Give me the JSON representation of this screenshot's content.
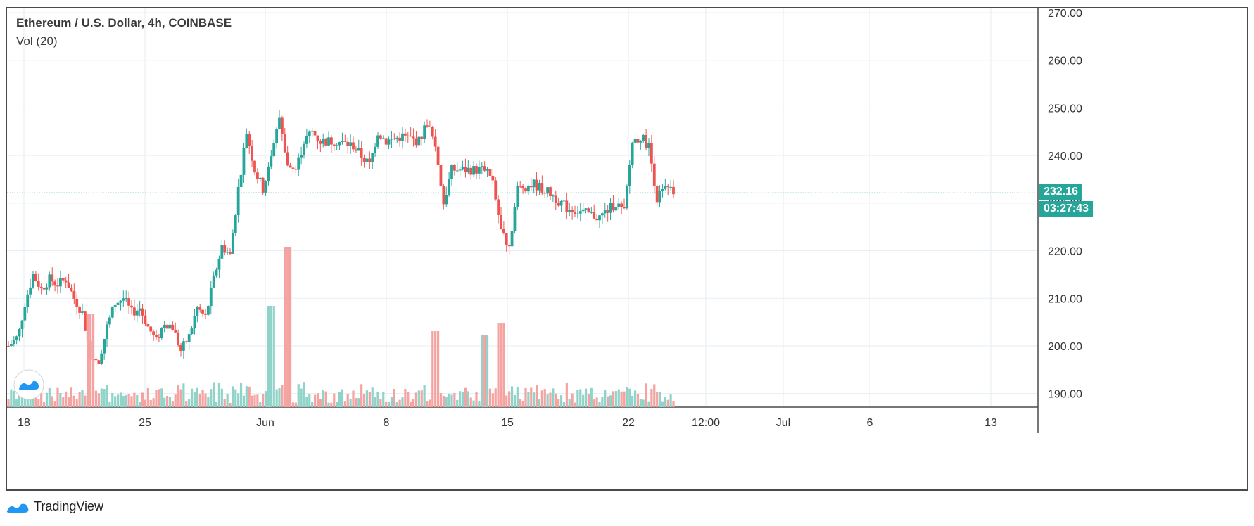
{
  "header": {
    "title": "Ethereum / U.S. Dollar, 4h, COINBASE",
    "volume_label": "Vol (20)"
  },
  "brand": {
    "name": "TradingView",
    "icon": "tradingview-logo-icon"
  },
  "colors": {
    "up": "#26a69a",
    "down": "#ef5350",
    "up_vol": "#8fd3c9",
    "down_vol": "#f4a3a1",
    "grid": "#e6eef3"
  },
  "last_price": {
    "value": "232.16",
    "countdown": "03:27:43"
  },
  "chart_data": {
    "type": "candlestick",
    "title": "Ethereum / U.S. Dollar, 4h, COINBASE",
    "interval": "4h",
    "exchange": "COINBASE",
    "y_axis": {
      "range": [
        187,
        270
      ],
      "ticks": [
        "270.00",
        "260.00",
        "250.00",
        "240.00",
        "230.00",
        "220.00",
        "210.00",
        "200.00",
        "190.00"
      ]
    },
    "x_axis": {
      "ticks": [
        "18",
        "25",
        "Jun",
        "8",
        "15",
        "22",
        "12:00",
        "Jul",
        "6",
        "13"
      ]
    },
    "x_range_days": [
      0,
      60
    ],
    "grid": true,
    "last_price": 232.16,
    "price_path": [
      [
        0,
        200
      ],
      [
        0.6,
        202
      ],
      [
        1,
        209
      ],
      [
        1.5,
        215
      ],
      [
        2,
        212
      ],
      [
        2.5,
        214
      ],
      [
        3,
        213
      ],
      [
        3.5,
        214
      ],
      [
        4,
        210
      ],
      [
        4.5,
        207
      ],
      [
        5,
        198
      ],
      [
        5.5,
        197
      ],
      [
        6,
        204
      ],
      [
        6.5,
        209
      ],
      [
        7,
        210
      ],
      [
        7.5,
        207
      ],
      [
        8,
        208
      ],
      [
        8.5,
        204
      ],
      [
        9,
        201
      ],
      [
        9.5,
        205
      ],
      [
        10,
        204
      ],
      [
        10.5,
        199
      ],
      [
        11,
        202
      ],
      [
        11.5,
        208
      ],
      [
        12,
        206
      ],
      [
        12.5,
        214
      ],
      [
        13,
        221
      ],
      [
        13.5,
        219
      ],
      [
        14,
        233
      ],
      [
        14.5,
        245
      ],
      [
        15,
        237
      ],
      [
        15.5,
        233
      ],
      [
        16,
        239
      ],
      [
        16.5,
        248
      ],
      [
        17,
        238
      ],
      [
        17.5,
        237
      ],
      [
        18,
        243
      ],
      [
        18.5,
        245
      ],
      [
        19,
        243
      ],
      [
        20,
        243
      ],
      [
        21,
        242
      ],
      [
        22,
        238
      ],
      [
        22.5,
        245
      ],
      [
        23,
        243
      ],
      [
        24,
        244
      ],
      [
        25,
        243
      ],
      [
        25.5,
        247
      ],
      [
        26,
        242
      ],
      [
        26.5,
        230
      ],
      [
        27,
        237
      ],
      [
        28,
        237
      ],
      [
        29,
        237
      ],
      [
        29.5,
        235
      ],
      [
        30,
        224
      ],
      [
        30.5,
        221
      ],
      [
        31,
        233
      ],
      [
        32,
        234
      ],
      [
        33,
        232
      ],
      [
        34,
        229
      ],
      [
        35,
        228
      ],
      [
        36,
        227
      ],
      [
        37,
        230
      ],
      [
        37.5,
        228
      ],
      [
        38,
        243
      ],
      [
        38.5,
        244
      ],
      [
        39,
        242
      ],
      [
        39.5,
        231
      ],
      [
        40,
        233
      ],
      [
        40.5,
        232.16
      ]
    ],
    "volume_spikes": [
      [
        5,
        11
      ],
      [
        16,
        12
      ],
      [
        17,
        19
      ],
      [
        26,
        9
      ],
      [
        29,
        8.5
      ],
      [
        30,
        10
      ]
    ]
  }
}
